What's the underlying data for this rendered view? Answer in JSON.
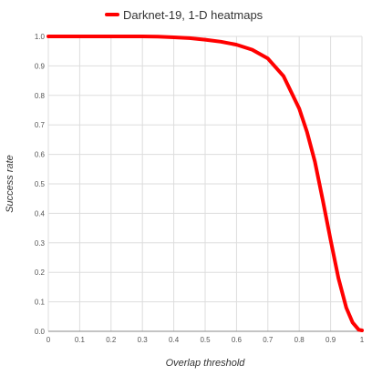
{
  "chart_data": {
    "type": "line",
    "title": "",
    "xlabel": "Overlap threshold",
    "ylabel": "Success rate",
    "xlim": [
      0,
      1
    ],
    "ylim": [
      0,
      1
    ],
    "x_ticks": [
      "0",
      "0.1",
      "0.2",
      "0.3",
      "0.4",
      "0.5",
      "0.6",
      "0.7",
      "0.8",
      "0.9",
      "1"
    ],
    "y_ticks": [
      "0.0",
      "0.1",
      "0.2",
      "0.3",
      "0.4",
      "0.5",
      "0.6",
      "0.7",
      "0.8",
      "0.9",
      "1.0"
    ],
    "grid": true,
    "legend_position": "top-center",
    "series": [
      {
        "name": "Darknet-19, 1-D heatmaps",
        "color": "#ff0000",
        "x": [
          0,
          0.1,
          0.2,
          0.3,
          0.35,
          0.4,
          0.45,
          0.5,
          0.55,
          0.6,
          0.65,
          0.7,
          0.75,
          0.8,
          0.825,
          0.85,
          0.875,
          0.9,
          0.925,
          0.95,
          0.97,
          0.99,
          1.0
        ],
        "y": [
          1.0,
          1.0,
          1.0,
          1.0,
          0.999,
          0.997,
          0.994,
          0.989,
          0.982,
          0.972,
          0.955,
          0.925,
          0.865,
          0.755,
          0.675,
          0.575,
          0.445,
          0.31,
          0.18,
          0.08,
          0.03,
          0.005,
          0.003
        ]
      }
    ]
  }
}
